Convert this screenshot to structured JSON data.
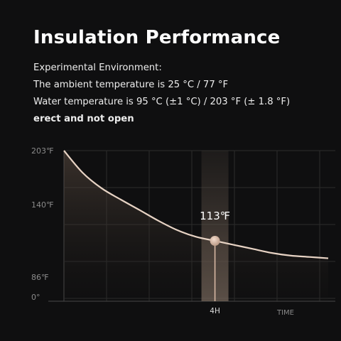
{
  "header": {
    "title": "Insulation Performance",
    "lines": [
      "Experimental Environment:",
      "The ambient temperature is 25 °C / 77 °F",
      "Water temperature is 95 °C (±1 °C) / 203 °F (± 1.8 °F)",
      "erect and not open"
    ]
  },
  "chart_data": {
    "type": "line",
    "y_ticks": [
      "203℉",
      "140℉",
      "86℉",
      "0°"
    ],
    "x_tick": "4H",
    "x_axis_label": "TIME",
    "x": [
      0,
      0.5,
      1,
      1.5,
      2,
      2.5,
      3,
      3.5,
      4,
      4.5,
      5,
      5.5,
      6,
      6.5,
      7
    ],
    "values": [
      203,
      177,
      159,
      146,
      136,
      128,
      121,
      116,
      113,
      110,
      107,
      104,
      102,
      101,
      100
    ],
    "highlight": {
      "x": 4,
      "value": 113,
      "label": "113℉"
    },
    "colors": {
      "curve": "#e7d3c4",
      "marker": "#d8b8a4",
      "band": "#5a4e45"
    }
  }
}
